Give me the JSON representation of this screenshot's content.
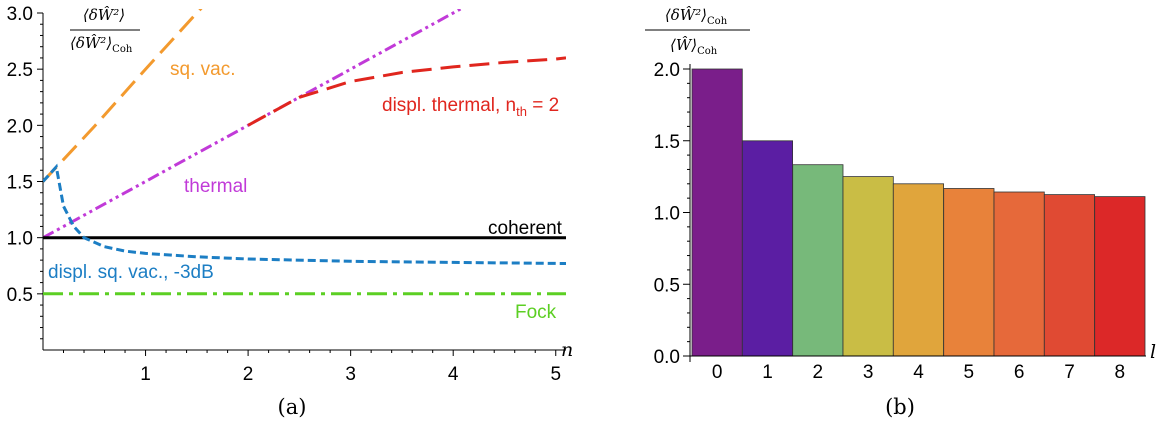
{
  "figure": {
    "panel_a_caption": "(a)",
    "panel_b_caption": "(b)"
  },
  "chart_data": [
    {
      "type": "line",
      "panel": "(a)",
      "xlabel": "n",
      "ylabel": "⟨δŴ²⟩ / ⟨δŴ²⟩_Coh",
      "ylabel_numerator": "⟨δŴ²⟩",
      "ylabel_denominator": "⟨δŴ²⟩",
      "ylabel_denominator_sub": "Coh",
      "xlim": [
        0,
        5.1
      ],
      "ylim": [
        0,
        3.0
      ],
      "x_ticks": [
        1,
        2,
        3,
        4,
        5
      ],
      "y_ticks": [
        0.5,
        1.0,
        1.5,
        2.0,
        2.5,
        3.0
      ],
      "y_tick_labels": [
        "0.5",
        "1.0",
        "1.5",
        "2.0",
        "2.5",
        "3.0"
      ],
      "grid": false,
      "series": [
        {
          "name": "sq. vac.",
          "color": "#f39a2e",
          "dash": "long-dash",
          "x": [
            0,
            0.5,
            1.0,
            1.5,
            1.55
          ],
          "y": [
            1.5,
            1.99,
            2.5,
            3.0,
            3.05
          ]
        },
        {
          "name": "thermal",
          "color": "#c13ad8",
          "dash": "dash-dot-dot",
          "x": [
            0,
            1,
            2,
            3,
            4,
            4.1
          ],
          "y": [
            1.0,
            1.5,
            2.0,
            2.5,
            3.0,
            3.05
          ]
        },
        {
          "name": "displ. thermal, n",
          "name_sub": "th",
          "name_suffix": " = 2",
          "color": "#e0261e",
          "dash": "long-dash",
          "x": [
            2.0,
            2.5,
            3.0,
            3.5,
            4.0,
            4.5,
            5.0,
            5.1
          ],
          "y": [
            2.0,
            2.25,
            2.39,
            2.47,
            2.52,
            2.56,
            2.59,
            2.6
          ]
        },
        {
          "name": "coherent",
          "color": "#000000",
          "dash": "solid",
          "x": [
            0,
            5.1
          ],
          "y": [
            1.0,
            1.0
          ]
        },
        {
          "name": "displ. sq. vac., -3dB",
          "color": "#1c7ec4",
          "dash": "short-dash",
          "x": [
            0.0,
            0.13,
            0.2,
            0.3,
            0.4,
            0.6,
            0.8,
            1.0,
            1.5,
            2.0,
            3.0,
            4.0,
            5.1
          ],
          "y": [
            1.5,
            1.63,
            1.28,
            1.1,
            1.0,
            0.92,
            0.88,
            0.86,
            0.83,
            0.81,
            0.79,
            0.78,
            0.77
          ]
        },
        {
          "name": "Fock",
          "color": "#5ccf23",
          "dash": "dash-dot",
          "x": [
            0,
            5.1
          ],
          "y": [
            0.5,
            0.5
          ]
        }
      ]
    },
    {
      "type": "bar",
      "panel": "(b)",
      "xlabel": "l",
      "ylabel": "⟨δŴ²⟩_Coh / ⟨Ŵ⟩²_Coh",
      "ylabel_numerator": "⟨δŴ²⟩",
      "ylabel_numerator_sub": "Coh",
      "ylabel_denominator": "⟨Ŵ⟩",
      "ylabel_denominator_sub": "Coh",
      "categories": [
        "0",
        "1",
        "2",
        "3",
        "4",
        "5",
        "6",
        "7",
        "8"
      ],
      "values": [
        2.0,
        1.5,
        1.333,
        1.25,
        1.2,
        1.167,
        1.143,
        1.125,
        1.111
      ],
      "colors": [
        "#7a1e8a",
        "#5b1ea3",
        "#77b97a",
        "#c9bd45",
        "#e0a53c",
        "#e8823a",
        "#e6693a",
        "#e04a33",
        "#dc2828"
      ],
      "ylim": [
        0,
        2.05
      ],
      "y_ticks": [
        0.0,
        0.5,
        1.0,
        1.5,
        2.0
      ],
      "y_tick_labels": [
        "0.0",
        "0.5",
        "1.0",
        "1.5",
        "2.0"
      ],
      "grid": false
    }
  ]
}
